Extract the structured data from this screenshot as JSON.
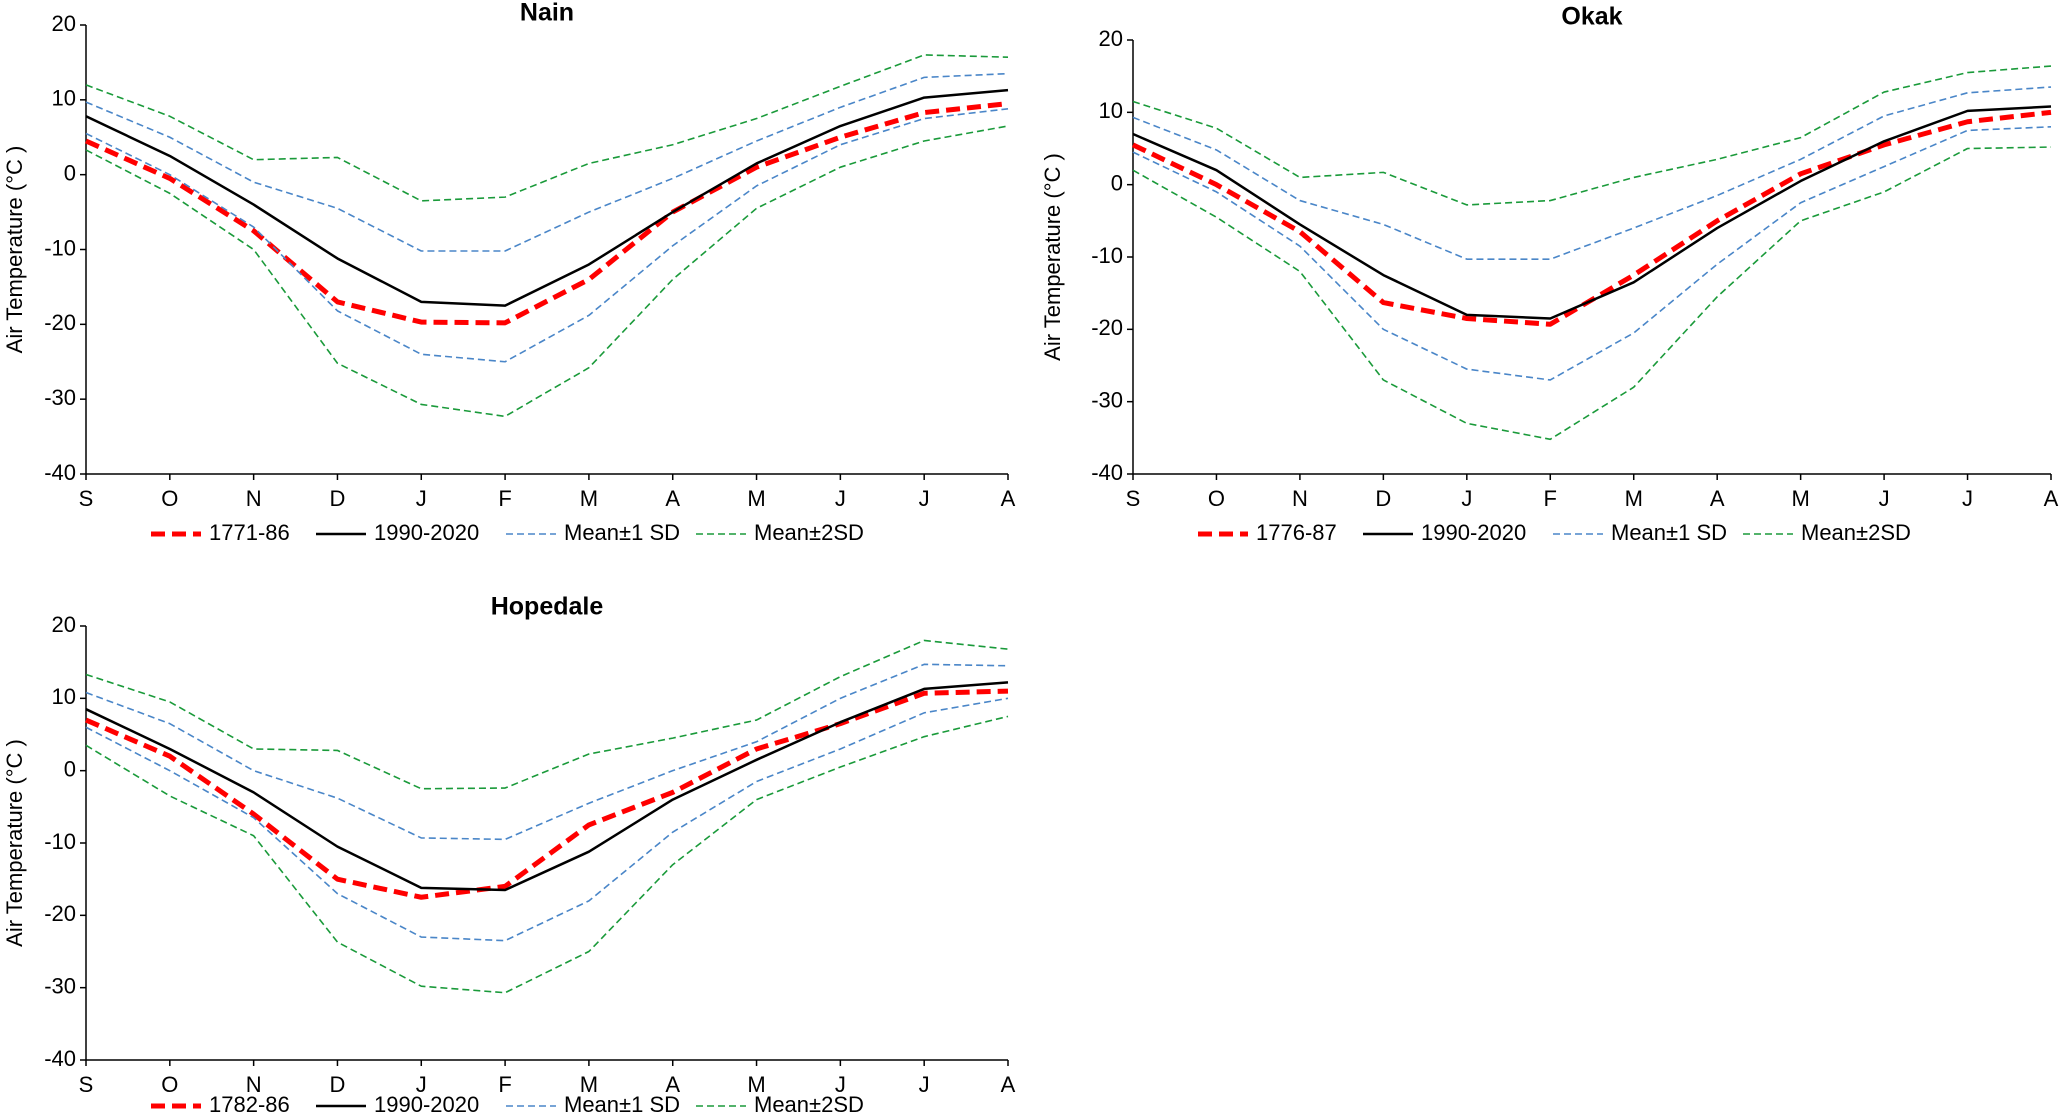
{
  "chart_data": [
    {
      "type": "line",
      "title": "Nain",
      "ylabel": "Air Temperature (°C )",
      "categories": [
        "S",
        "O",
        "N",
        "D",
        "J",
        "F",
        "M",
        "A",
        "M",
        "J",
        "J",
        "A"
      ],
      "ylim": [
        -40,
        20
      ],
      "yticks": [
        -40,
        -30,
        -20,
        -10,
        0,
        10,
        20
      ],
      "series": [
        {
          "name": "1771-86",
          "color": "#ff0000",
          "line_style": "dashed",
          "line_width": 5,
          "values": [
            4.5,
            -0.5,
            -7.5,
            -17,
            -19.7,
            -19.8,
            -14,
            -5,
            1,
            5,
            8.3,
            9.5
          ]
        },
        {
          "name": "1990-2020",
          "color": "#000000",
          "line_style": "solid",
          "line_width": 2.5,
          "values": [
            7.8,
            2.5,
            -4,
            -11.2,
            -17,
            -17.5,
            -12,
            -5,
            1.5,
            6.5,
            10.3,
            11.3
          ]
        },
        {
          "name": "Mean±1 SD",
          "color": "#4a86c8",
          "line_style": "dashed",
          "line_width": 1.6,
          "upper": [
            9.7,
            5,
            -1,
            -4.5,
            -10.2,
            -10.2,
            -5,
            -0.5,
            4.5,
            9,
            13,
            13.5
          ],
          "lower": [
            5.5,
            0,
            -7,
            -18.2,
            -24,
            -25,
            -18.8,
            -9.5,
            -1.5,
            4,
            7.5,
            8.8
          ]
        },
        {
          "name": "Mean±2SD",
          "color": "#1a9a3a",
          "line_style": "dashed",
          "line_width": 1.6,
          "upper": [
            12,
            7.8,
            2,
            2.3,
            -3.5,
            -3,
            1.5,
            4,
            7.5,
            11.8,
            16,
            15.7
          ],
          "lower": [
            3.3,
            -2.5,
            -10,
            -25.2,
            -30.7,
            -32.3,
            -25.8,
            -14,
            -4.5,
            1,
            4.5,
            6.5
          ]
        }
      ]
    },
    {
      "type": "line",
      "title": "Okak",
      "ylabel": "Air Temperature (°C )",
      "categories": [
        "S",
        "O",
        "N",
        "D",
        "J",
        "F",
        "M",
        "A",
        "M",
        "J",
        "J",
        "A"
      ],
      "ylim": [
        -40,
        20
      ],
      "yticks": [
        -40,
        -30,
        -20,
        -10,
        0,
        10,
        20
      ],
      "series": [
        {
          "name": "1776-87",
          "color": "#ff0000",
          "line_style": "dashed",
          "line_width": 5,
          "values": [
            5.5,
            0,
            -6.5,
            -16.3,
            -18.5,
            -19.3,
            -12.5,
            -5,
            1.5,
            5.5,
            8.7,
            10
          ]
        },
        {
          "name": "1990-2020",
          "color": "#000000",
          "line_style": "solid",
          "line_width": 2.5,
          "values": [
            7,
            2,
            -5.5,
            -12.5,
            -18,
            -18.5,
            -13.5,
            -6,
            0.5,
            6,
            10.2,
            10.8
          ]
        },
        {
          "name": "Mean±1 SD",
          "color": "#4a86c8",
          "line_style": "dashed",
          "line_width": 1.6,
          "upper": [
            9.3,
            4.8,
            -2.2,
            -5.5,
            -10.3,
            -10.3,
            -6,
            -1.5,
            3.5,
            9.5,
            12.7,
            13.5
          ],
          "lower": [
            4.5,
            -1,
            -8.5,
            -20,
            -25.5,
            -27,
            -20.5,
            -11,
            -2.5,
            2.5,
            7.5,
            8
          ]
        },
        {
          "name": "Mean±2SD",
          "color": "#1a9a3a",
          "line_style": "dashed",
          "line_width": 1.6,
          "upper": [
            11.5,
            7.8,
            1,
            1.7,
            -2.8,
            -2.2,
            1,
            3.5,
            6.5,
            12.8,
            15.5,
            16.4
          ],
          "lower": [
            2,
            -4.5,
            -12,
            -27,
            -33,
            -35.2,
            -28,
            -15.5,
            -5,
            -1,
            5,
            5.2
          ]
        }
      ]
    },
    {
      "type": "line",
      "title": "Hopedale",
      "ylabel": "Air Temperature (°C )",
      "categories": [
        "S",
        "O",
        "N",
        "D",
        "J",
        "F",
        "M",
        "A",
        "M",
        "J",
        "J",
        "A"
      ],
      "ylim": [
        -40,
        20
      ],
      "yticks": [
        -40,
        -30,
        -20,
        -10,
        0,
        10,
        20
      ],
      "series": [
        {
          "name": "1782-86",
          "color": "#ff0000",
          "line_style": "dashed",
          "line_width": 5,
          "values": [
            7,
            2,
            -6,
            -15,
            -17.5,
            -16,
            -7.5,
            -3,
            3,
            6.5,
            10.7,
            11
          ]
        },
        {
          "name": "1990-2020",
          "color": "#000000",
          "line_style": "solid",
          "line_width": 2.5,
          "values": [
            8.5,
            3,
            -3,
            -10.5,
            -16.2,
            -16.5,
            -11.2,
            -4,
            1.5,
            6.7,
            11.3,
            12.2
          ]
        },
        {
          "name": "Mean±1 SD",
          "color": "#4a86c8",
          "line_style": "dashed",
          "line_width": 1.6,
          "upper": [
            10.8,
            6.5,
            0,
            -3.8,
            -9.3,
            -9.5,
            -4.5,
            0,
            4,
            10,
            14.7,
            14.5
          ],
          "lower": [
            6,
            0,
            -6.5,
            -17,
            -23,
            -23.5,
            -18,
            -8.5,
            -1.5,
            3,
            8,
            10
          ]
        },
        {
          "name": "Mean±2SD",
          "color": "#1a9a3a",
          "line_style": "dashed",
          "line_width": 1.6,
          "upper": [
            13.3,
            9.5,
            3,
            2.8,
            -2.5,
            -2.4,
            2.3,
            4.5,
            7,
            13,
            18,
            16.8
          ],
          "lower": [
            3.5,
            -3.5,
            -9,
            -23.7,
            -29.8,
            -30.7,
            -25,
            -13,
            -4,
            0.5,
            4.7,
            7.5
          ]
        }
      ]
    }
  ]
}
